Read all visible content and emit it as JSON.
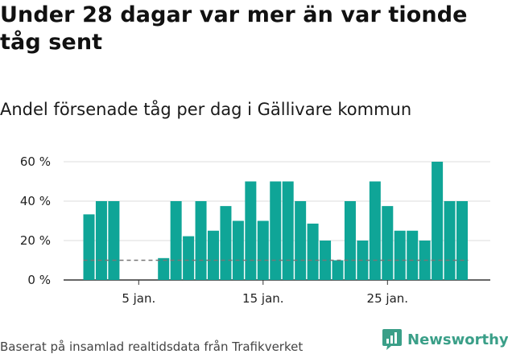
{
  "header": {
    "title": "Under 28 dagar var mer än var tionde tåg sent",
    "subtitle": "Andel försenade tåg per dag i Gällivare kommun"
  },
  "footer": {
    "source": "Baserat på insamlad realtidsdata från Trafikverket",
    "brand": "Newsworthy"
  },
  "colors": {
    "bar": "#0fa597",
    "threshold": "#777777",
    "grid": "#dcdcdc",
    "brand": "#3a9f88"
  },
  "chart_data": {
    "type": "bar",
    "x": [
      1,
      2,
      3,
      4,
      5,
      6,
      7,
      8,
      9,
      10,
      11,
      12,
      13,
      14,
      15,
      16,
      17,
      18,
      19,
      20,
      21,
      22,
      23,
      24,
      25,
      26,
      27,
      28,
      29,
      30,
      31
    ],
    "values": [
      33.3,
      40,
      40,
      0,
      0,
      0,
      11.1,
      40,
      22.2,
      40,
      25,
      37.5,
      30,
      50,
      30,
      50,
      50,
      40,
      28.6,
      20,
      10,
      40,
      20,
      50,
      37.5,
      25,
      25,
      20,
      60,
      40,
      40
    ],
    "x_tick_labels": [
      {
        "x": 5,
        "label": "5 jan."
      },
      {
        "x": 15,
        "label": "15 jan."
      },
      {
        "x": 25,
        "label": "25 jan."
      }
    ],
    "y_ticks": [
      0,
      20,
      40,
      60
    ],
    "y_tick_labels": [
      "0 %",
      "20 %",
      "40 %",
      "60 %"
    ],
    "ylim": [
      0,
      60
    ],
    "threshold": 10,
    "threshold_style": "dashed",
    "grid": true
  }
}
